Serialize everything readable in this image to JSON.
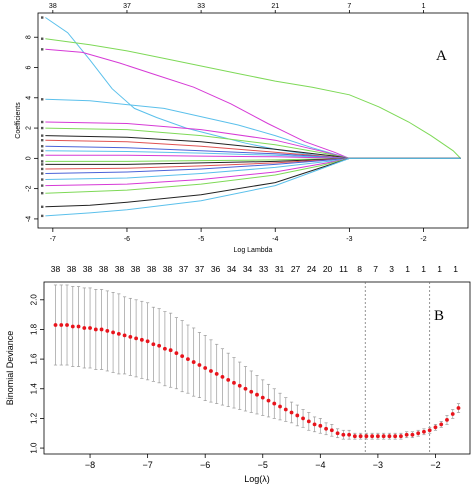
{
  "chart_data": [
    {
      "type": "line",
      "panel_label": "A",
      "xlabel": "Log Lambda",
      "ylabel": "Coefficients",
      "xlim": [
        -7.2,
        -1.4
      ],
      "ylim": [
        -4.6,
        9.6
      ],
      "x_ticks": [
        -7,
        -6,
        -5,
        -4,
        -3,
        -2
      ],
      "y_ticks": [
        -4,
        -2,
        0,
        2,
        4,
        6,
        8
      ],
      "top_ticks": [
        {
          "x": -7.0,
          "label": "38"
        },
        {
          "x": -6.0,
          "label": "37"
        },
        {
          "x": -5.0,
          "label": "33"
        },
        {
          "x": -4.0,
          "label": "21"
        },
        {
          "x": -3.0,
          "label": "7"
        },
        {
          "x": -2.0,
          "label": "1"
        }
      ],
      "series": [
        {
          "color": "#5bc0eb",
          "points": [
            [
              -7.1,
              9.3
            ],
            [
              -6.8,
              8.3
            ],
            [
              -6.5,
              6.5
            ],
            [
              -6.2,
              4.6
            ],
            [
              -5.9,
              3.3
            ],
            [
              -5.6,
              2.7
            ],
            [
              -5.2,
              2.0
            ],
            [
              -4.8,
              1.5
            ],
            [
              -4.4,
              1.0
            ],
            [
              -4.0,
              0.6
            ],
            [
              -3.6,
              0.3
            ],
            [
              -3.3,
              0.1
            ],
            [
              -3.05,
              0.0
            ],
            [
              -1.5,
              0.0
            ]
          ]
        },
        {
          "color": "#7ed957",
          "points": [
            [
              -7.1,
              7.9
            ],
            [
              -6.5,
              7.5
            ],
            [
              -6.0,
              7.1
            ],
            [
              -5.5,
              6.6
            ],
            [
              -5.0,
              6.1
            ],
            [
              -4.5,
              5.6
            ],
            [
              -4.0,
              5.1
            ],
            [
              -3.5,
              4.7
            ],
            [
              -3.0,
              4.2
            ],
            [
              -2.6,
              3.4
            ],
            [
              -2.2,
              2.4
            ],
            [
              -1.9,
              1.5
            ],
            [
              -1.6,
              0.5
            ],
            [
              -1.5,
              0.0
            ]
          ]
        },
        {
          "color": "#d63ad6",
          "points": [
            [
              -7.1,
              7.2
            ],
            [
              -6.6,
              7.0
            ],
            [
              -6.1,
              6.3
            ],
            [
              -5.6,
              5.5
            ],
            [
              -5.1,
              4.7
            ],
            [
              -4.6,
              3.6
            ],
            [
              -4.1,
              2.3
            ],
            [
              -3.6,
              1.1
            ],
            [
              -3.2,
              0.4
            ],
            [
              -3.0,
              0.0
            ],
            [
              -1.5,
              0.0
            ]
          ]
        },
        {
          "color": "#5bc0eb",
          "points": [
            [
              -7.1,
              3.9
            ],
            [
              -6.5,
              3.8
            ],
            [
              -5.5,
              3.3
            ],
            [
              -4.5,
              2.2
            ],
            [
              -4.0,
              1.5
            ],
            [
              -3.5,
              0.7
            ],
            [
              -3.0,
              0.0
            ],
            [
              -1.5,
              0.0
            ]
          ]
        },
        {
          "color": "#d63ad6",
          "points": [
            [
              -7.1,
              2.4
            ],
            [
              -6.0,
              2.3
            ],
            [
              -5.0,
              1.9
            ],
            [
              -4.0,
              1.2
            ],
            [
              -3.4,
              0.5
            ],
            [
              -3.0,
              0.0
            ],
            [
              -1.5,
              0.0
            ]
          ]
        },
        {
          "color": "#7ed957",
          "points": [
            [
              -7.1,
              2.0
            ],
            [
              -6.0,
              1.9
            ],
            [
              -5.0,
              1.5
            ],
            [
              -4.0,
              0.9
            ],
            [
              -3.3,
              0.3
            ],
            [
              -3.0,
              0.0
            ],
            [
              -1.5,
              0.0
            ]
          ]
        },
        {
          "color": "#222222",
          "points": [
            [
              -7.1,
              1.5
            ],
            [
              -6.0,
              1.4
            ],
            [
              -5.0,
              1.1
            ],
            [
              -4.0,
              0.6
            ],
            [
              -3.2,
              0.15
            ],
            [
              -3.0,
              0.0
            ],
            [
              -1.5,
              0.0
            ]
          ]
        },
        {
          "color": "#e05252",
          "points": [
            [
              -7.1,
              1.2
            ],
            [
              -6.0,
              1.1
            ],
            [
              -5.0,
              0.8
            ],
            [
              -4.0,
              0.4
            ],
            [
              -3.0,
              0.0
            ],
            [
              -1.5,
              0.0
            ]
          ]
        },
        {
          "color": "#4a63d8",
          "points": [
            [
              -7.1,
              0.8
            ],
            [
              -6.0,
              0.7
            ],
            [
              -5.0,
              0.5
            ],
            [
              -4.0,
              0.3
            ],
            [
              -3.0,
              0.0
            ],
            [
              -1.5,
              0.0
            ]
          ]
        },
        {
          "color": "#5bc0eb",
          "points": [
            [
              -7.1,
              0.5
            ],
            [
              -6.0,
              0.45
            ],
            [
              -5.0,
              0.35
            ],
            [
              -4.0,
              0.2
            ],
            [
              -3.0,
              0.0
            ],
            [
              -1.5,
              0.0
            ]
          ]
        },
        {
          "color": "#d63ad6",
          "points": [
            [
              -7.1,
              0.2
            ],
            [
              -6.0,
              0.2
            ],
            [
              -5.0,
              0.15
            ],
            [
              -4.0,
              0.1
            ],
            [
              -3.0,
              0.0
            ],
            [
              -1.5,
              0.0
            ]
          ]
        },
        {
          "color": "#7ed957",
          "points": [
            [
              -7.1,
              -0.2
            ],
            [
              -6.0,
              -0.2
            ],
            [
              -5.0,
              -0.15
            ],
            [
              -4.0,
              -0.1
            ],
            [
              -3.0,
              0.0
            ],
            [
              -1.5,
              0.0
            ]
          ]
        },
        {
          "color": "#222222",
          "points": [
            [
              -7.1,
              -0.4
            ],
            [
              -6.0,
              -0.4
            ],
            [
              -5.0,
              -0.3
            ],
            [
              -4.0,
              -0.2
            ],
            [
              -3.0,
              0.0
            ],
            [
              -1.5,
              0.0
            ]
          ]
        },
        {
          "color": "#e05252",
          "points": [
            [
              -7.1,
              -0.7
            ],
            [
              -6.0,
              -0.65
            ],
            [
              -5.0,
              -0.5
            ],
            [
              -4.0,
              -0.3
            ],
            [
              -3.0,
              0.0
            ],
            [
              -1.5,
              0.0
            ]
          ]
        },
        {
          "color": "#4a63d8",
          "points": [
            [
              -7.1,
              -1.0
            ],
            [
              -6.0,
              -0.9
            ],
            [
              -5.0,
              -0.7
            ],
            [
              -4.0,
              -0.4
            ],
            [
              -3.0,
              0.0
            ],
            [
              -1.5,
              0.0
            ]
          ]
        },
        {
          "color": "#5bc0eb",
          "points": [
            [
              -7.1,
              -1.4
            ],
            [
              -6.0,
              -1.3
            ],
            [
              -5.0,
              -1.0
            ],
            [
              -4.0,
              -0.6
            ],
            [
              -3.2,
              -0.15
            ],
            [
              -3.0,
              0.0
            ],
            [
              -1.5,
              0.0
            ]
          ]
        },
        {
          "color": "#d63ad6",
          "points": [
            [
              -7.1,
              -1.8
            ],
            [
              -6.0,
              -1.7
            ],
            [
              -5.0,
              -1.4
            ],
            [
              -4.0,
              -0.9
            ],
            [
              -3.3,
              -0.3
            ],
            [
              -3.0,
              0.0
            ],
            [
              -1.5,
              0.0
            ]
          ]
        },
        {
          "color": "#7ed957",
          "points": [
            [
              -7.1,
              -2.3
            ],
            [
              -6.0,
              -2.1
            ],
            [
              -5.0,
              -1.7
            ],
            [
              -4.0,
              -1.1
            ],
            [
              -3.4,
              -0.5
            ],
            [
              -3.0,
              0.0
            ],
            [
              -1.5,
              0.0
            ]
          ]
        },
        {
          "color": "#222222",
          "points": [
            [
              -7.1,
              -3.2
            ],
            [
              -6.5,
              -3.1
            ],
            [
              -6.0,
              -2.9
            ],
            [
              -5.0,
              -2.4
            ],
            [
              -4.0,
              -1.6
            ],
            [
              -3.5,
              -0.8
            ],
            [
              -3.0,
              0.0
            ],
            [
              -1.5,
              0.0
            ]
          ]
        },
        {
          "color": "#5bc0eb",
          "points": [
            [
              -7.1,
              -3.8
            ],
            [
              -6.5,
              -3.6
            ],
            [
              -6.0,
              -3.4
            ],
            [
              -5.0,
              -2.8
            ],
            [
              -4.0,
              -1.8
            ],
            [
              -3.5,
              -0.9
            ],
            [
              -3.0,
              0.0
            ],
            [
              -1.5,
              0.0
            ]
          ]
        }
      ]
    },
    {
      "type": "scatter",
      "panel_label": "B",
      "xlabel": "Log(λ)",
      "ylabel": "Binomial Deviance",
      "xlim": [
        -8.8,
        -1.4
      ],
      "ylim": [
        0.96,
        2.12
      ],
      "x_ticks": [
        -8,
        -7,
        -6,
        -5,
        -4,
        -3,
        -2
      ],
      "y_ticks": [
        1.0,
        1.2,
        1.4,
        1.6,
        1.8,
        2.0
      ],
      "top_labels": [
        "38",
        "38",
        "38",
        "38",
        "38",
        "38",
        "38",
        "38",
        "37",
        "37",
        "36",
        "34",
        "34",
        "33",
        "31",
        "27",
        "24",
        "20",
        "11",
        "8",
        "7",
        "3",
        "1",
        "1",
        "1",
        "1"
      ],
      "vlines": [
        -3.22,
        -2.1
      ],
      "x": [
        -8.6,
        -8.5,
        -8.4,
        -8.3,
        -8.2,
        -8.1,
        -8.0,
        -7.9,
        -7.8,
        -7.7,
        -7.6,
        -7.5,
        -7.4,
        -7.3,
        -7.2,
        -7.1,
        -7.0,
        -6.9,
        -6.8,
        -6.7,
        -6.6,
        -6.5,
        -6.4,
        -6.3,
        -6.2,
        -6.1,
        -6.0,
        -5.9,
        -5.8,
        -5.7,
        -5.6,
        -5.5,
        -5.4,
        -5.3,
        -5.2,
        -5.1,
        -5.0,
        -4.9,
        -4.8,
        -4.7,
        -4.6,
        -4.5,
        -4.4,
        -4.3,
        -4.2,
        -4.1,
        -4.0,
        -3.9,
        -3.8,
        -3.7,
        -3.6,
        -3.5,
        -3.4,
        -3.3,
        -3.2,
        -3.1,
        -3.0,
        -2.9,
        -2.8,
        -2.7,
        -2.6,
        -2.5,
        -2.4,
        -2.3,
        -2.2,
        -2.1,
        -2.0,
        -1.9,
        -1.8,
        -1.7,
        -1.6
      ],
      "y": [
        1.83,
        1.83,
        1.83,
        1.82,
        1.82,
        1.81,
        1.81,
        1.8,
        1.8,
        1.79,
        1.78,
        1.77,
        1.76,
        1.75,
        1.74,
        1.73,
        1.72,
        1.7,
        1.69,
        1.67,
        1.66,
        1.64,
        1.62,
        1.6,
        1.58,
        1.56,
        1.54,
        1.52,
        1.5,
        1.48,
        1.46,
        1.44,
        1.42,
        1.4,
        1.38,
        1.36,
        1.34,
        1.32,
        1.3,
        1.28,
        1.26,
        1.24,
        1.22,
        1.2,
        1.18,
        1.16,
        1.15,
        1.13,
        1.12,
        1.1,
        1.09,
        1.09,
        1.08,
        1.08,
        1.08,
        1.08,
        1.08,
        1.08,
        1.08,
        1.08,
        1.08,
        1.09,
        1.09,
        1.1,
        1.11,
        1.12,
        1.14,
        1.16,
        1.19,
        1.23,
        1.27
      ],
      "err": [
        0.27,
        0.27,
        0.27,
        0.27,
        0.27,
        0.27,
        0.27,
        0.27,
        0.27,
        0.27,
        0.27,
        0.27,
        0.26,
        0.26,
        0.26,
        0.26,
        0.26,
        0.25,
        0.25,
        0.25,
        0.25,
        0.24,
        0.24,
        0.23,
        0.23,
        0.22,
        0.22,
        0.21,
        0.2,
        0.19,
        0.18,
        0.17,
        0.16,
        0.15,
        0.14,
        0.13,
        0.12,
        0.11,
        0.1,
        0.09,
        0.08,
        0.07,
        0.07,
        0.06,
        0.06,
        0.05,
        0.05,
        0.04,
        0.04,
        0.03,
        0.03,
        0.03,
        0.02,
        0.02,
        0.02,
        0.02,
        0.02,
        0.02,
        0.02,
        0.02,
        0.02,
        0.02,
        0.02,
        0.02,
        0.02,
        0.02,
        0.02,
        0.02,
        0.03,
        0.03,
        0.03
      ]
    }
  ],
  "colors": {
    "point": "#e8141c",
    "errorbar": "#9a9a9a",
    "vline": "#666666",
    "axis": "#000000"
  }
}
